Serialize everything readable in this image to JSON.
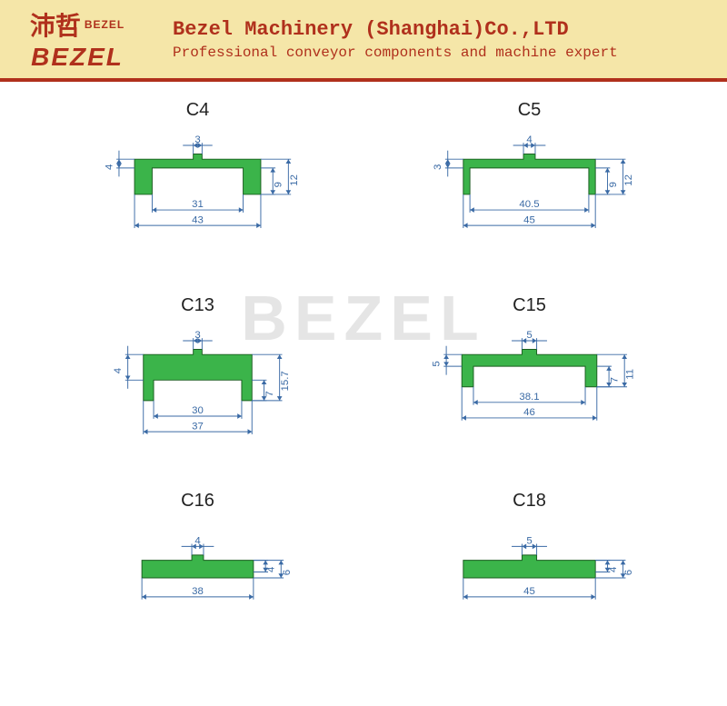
{
  "header": {
    "logo_cn": "沛哲",
    "logo_sub": "BEZEL",
    "logo_main": "BEZEL",
    "title": "Bezel Machinery (Shanghai)Co.,LTD",
    "subtitle": "Professional conveyor components and machine expert",
    "bg_color": "#f5e6a8",
    "text_color": "#b0301c"
  },
  "watermark": "BEZEL",
  "colors": {
    "shape_fill": "#3bb44a",
    "shape_stroke": "#1a5c1f",
    "dim_line": "#3a6aa5",
    "dim_text": "#3a6aa5",
    "background": "#ffffff"
  },
  "parts": {
    "c4": {
      "label": "C4",
      "type": "u-profile",
      "outer_width": 43,
      "inner_width": 31,
      "total_height": 12,
      "inner_height": 9,
      "top_thickness": 4,
      "tab_width": 3
    },
    "c5": {
      "label": "C5",
      "type": "u-profile",
      "outer_width": 45,
      "inner_width": 40.5,
      "total_height": 12,
      "inner_height": 9,
      "top_thickness": 3,
      "tab_width": 4
    },
    "c13": {
      "label": "C13",
      "type": "u-profile",
      "outer_width": 37,
      "inner_width": 30,
      "total_height": 15.7,
      "inner_height": 7,
      "top_thickness": 4,
      "tab_width": 3
    },
    "c15": {
      "label": "C15",
      "type": "u-profile",
      "outer_width": 46,
      "inner_width": 38.1,
      "total_height": 11,
      "inner_height": 7,
      "top_thickness": 5,
      "tab_width": 5
    },
    "c16": {
      "label": "C16",
      "type": "flat-bar",
      "width": 38,
      "height": 6,
      "top_thickness": 4,
      "tab_width": 4
    },
    "c18": {
      "label": "C18",
      "type": "flat-bar",
      "width": 45,
      "height": 6,
      "top_thickness": 4,
      "tab_width": 5
    }
  },
  "svg_config": {
    "viewbox_w": 300,
    "viewbox_h": 170,
    "scale": 3.4,
    "font_size": 12
  }
}
